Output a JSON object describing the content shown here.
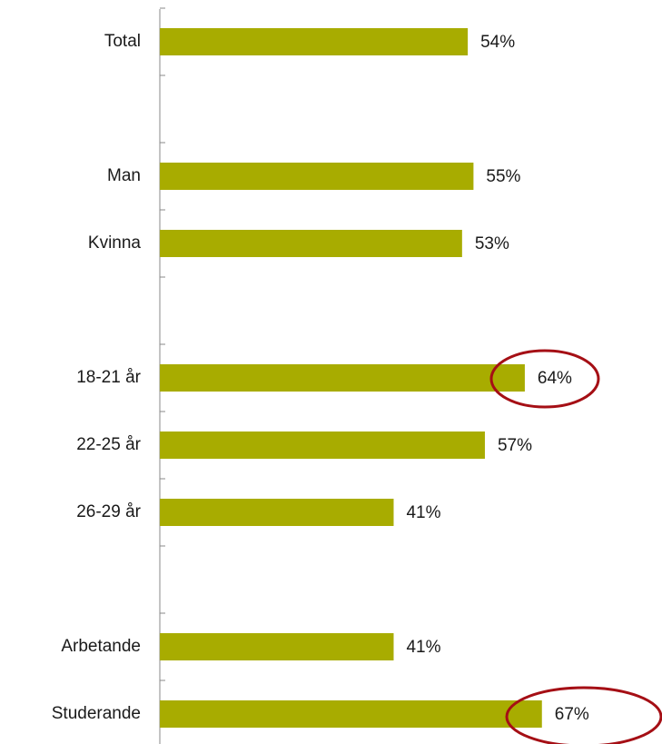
{
  "chart_data": {
    "type": "bar",
    "orientation": "horizontal",
    "categories": [
      "Total",
      null,
      "Man",
      "Kvinna",
      null,
      "18-21 år",
      "22-25 år",
      "26-29 år",
      null,
      "Arbetande",
      "Studerande"
    ],
    "values": [
      54,
      null,
      55,
      53,
      null,
      64,
      57,
      41,
      null,
      41,
      67
    ],
    "value_labels": [
      "54%",
      null,
      "55%",
      "53%",
      null,
      "64%",
      "57%",
      "41%",
      null,
      "41%",
      "67%"
    ],
    "color": "#a8ac00",
    "xlim": [
      0,
      100
    ]
  }
}
